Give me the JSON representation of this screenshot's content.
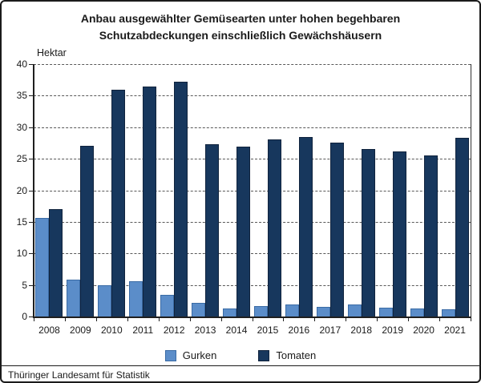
{
  "chart_data": {
    "type": "bar",
    "title": "Anbau ausgewählter Gemüsearten unter hohen begehbaren Schutzabdeckungen einschließlich Gewächshäusern",
    "title_lines": [
      "Anbau ausgewählter Gemüsearten unter hohen begehbaren",
      "Schutzabdeckungen einschließlich Gewächshäusern"
    ],
    "ylabel": "Hektar",
    "xlabel": "",
    "ylim": [
      0,
      40
    ],
    "ytick_step": 5,
    "grid": "horizontal-dashed",
    "legend_position": "bottom-center",
    "categories": [
      "2008",
      "2009",
      "2010",
      "2011",
      "2012",
      "2013",
      "2014",
      "2015",
      "2016",
      "2017",
      "2018",
      "2019",
      "2020",
      "2021"
    ],
    "series": [
      {
        "name": "Gurken",
        "color": "#5b8dc9",
        "border_color": "#3a6ba5",
        "values": [
          15.6,
          5.8,
          4.9,
          5.6,
          3.4,
          2.1,
          1.3,
          1.7,
          1.9,
          1.5,
          1.9,
          1.4,
          1.3,
          1.1
        ]
      },
      {
        "name": "Tomaten",
        "color": "#17375d",
        "border_color": "#10233d",
        "values": [
          17.0,
          27.0,
          35.9,
          36.4,
          37.2,
          27.3,
          26.9,
          28.1,
          28.4,
          27.5,
          26.5,
          26.1,
          25.5,
          28.3
        ]
      }
    ]
  },
  "footer": {
    "source": "Thüringer Landesamt für Statistik"
  },
  "colors": {
    "grid": "#595959",
    "axis": "#1f1f1f",
    "text": "#1a1a1a",
    "border": "#1b1b1b",
    "background": "#ffffff"
  }
}
